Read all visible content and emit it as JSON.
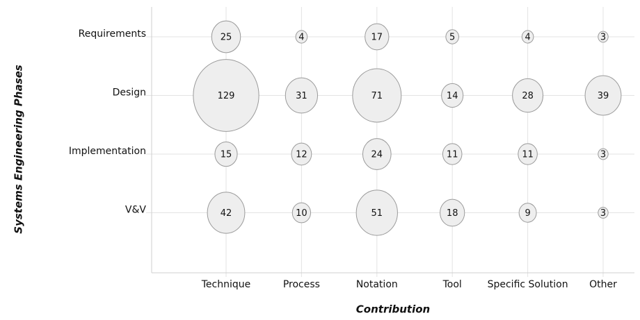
{
  "chart_data": {
    "type": "bubble",
    "x_label": "Contribution",
    "y_label": "Systems Engineering Phases",
    "x_categories": [
      "Technique",
      "Process",
      "Notation",
      "Tool",
      "Specific Solution",
      "Other"
    ],
    "y_categories": [
      "Requirements",
      "Design",
      "Implementation",
      "V&V"
    ],
    "values": [
      [
        25,
        4,
        17,
        5,
        4,
        3
      ],
      [
        129,
        31,
        71,
        14,
        28,
        39
      ],
      [
        15,
        12,
        24,
        11,
        11,
        3
      ],
      [
        42,
        10,
        51,
        18,
        9,
        3
      ]
    ],
    "color": "#eeeeee",
    "edge_color": "#9a9a9a",
    "grid": true
  }
}
